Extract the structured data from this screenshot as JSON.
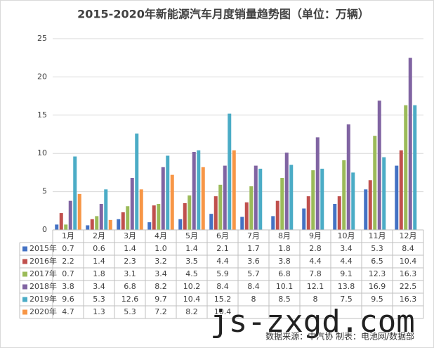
{
  "chart_data": {
    "type": "bar",
    "title": "2015-2020年新能源汽车月度销量趋势图（单位：万辆）",
    "categories": [
      "1月",
      "2月",
      "3月",
      "4月",
      "5月",
      "6月",
      "7月",
      "8月",
      "9月",
      "10月",
      "11月",
      "12月"
    ],
    "series": [
      {
        "name": "2015年",
        "color": "#4472c4",
        "values": [
          0.7,
          0.6,
          1.4,
          1.0,
          1.4,
          2.1,
          1.7,
          1.8,
          2.8,
          3.4,
          5.3,
          8.4
        ],
        "value_labels": [
          "0.7",
          "0.6",
          "1.4",
          "1.0",
          "1.4",
          "2.1",
          "1.7",
          "1.8",
          "2.8",
          "3.4",
          "5.3",
          "8.4"
        ]
      },
      {
        "name": "2016年",
        "color": "#c0504d",
        "values": [
          2.2,
          1.4,
          2.3,
          3.2,
          3.5,
          4.4,
          3.6,
          3.8,
          4.4,
          4.4,
          6.5,
          10.4
        ]
      },
      {
        "name": "2017年",
        "color": "#9bbb59",
        "values": [
          0.7,
          1.8,
          3.1,
          3.4,
          4.5,
          5.9,
          5.7,
          6.8,
          7.8,
          9.1,
          12.3,
          16.3
        ]
      },
      {
        "name": "2018年",
        "color": "#8064a2",
        "values": [
          3.8,
          3.4,
          6.8,
          8.2,
          10.2,
          8.4,
          8.4,
          10.1,
          12.1,
          13.8,
          16.9,
          22.5
        ]
      },
      {
        "name": "2019年",
        "color": "#4bacc6",
        "values": [
          9.6,
          5.3,
          12.6,
          9.7,
          10.4,
          15.2,
          8,
          8.5,
          8,
          7.5,
          9.5,
          16.3
        ]
      },
      {
        "name": "2020年",
        "color": "#f79646",
        "values": [
          4.7,
          1.3,
          5.3,
          7.2,
          8.2,
          10.4,
          null,
          null,
          null,
          null,
          null,
          null
        ]
      }
    ],
    "ylim": [
      0,
      25
    ],
    "yticks": [
      0,
      5,
      10,
      15,
      20,
      25
    ],
    "grid": true,
    "watermark": "js-zxgd.com",
    "source": "数据来源：中汽协  制表：电池网/数据部"
  }
}
